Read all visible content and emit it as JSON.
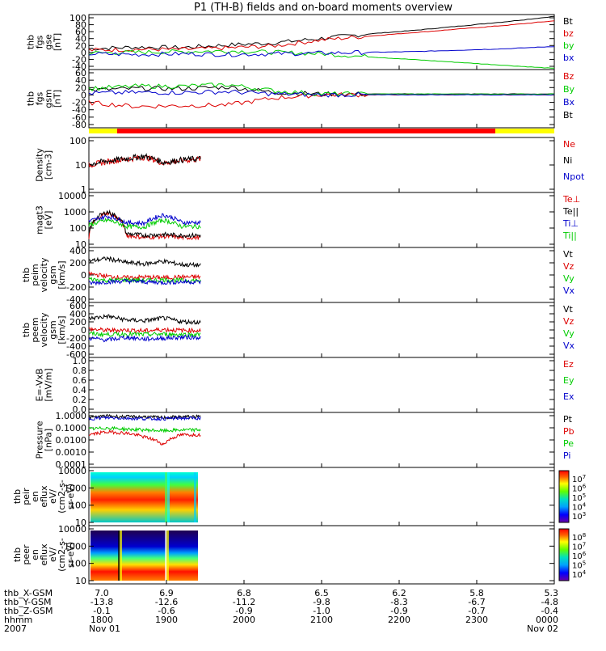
{
  "title": "P1 (TH-B) fields and on-board moments overview",
  "colors": {
    "black": "#000000",
    "red": "#dd0000",
    "green": "#00cc00",
    "blue": "#0000cc",
    "yellow": "#ffff00",
    "bar_red": "#ff0000"
  },
  "chart_data": [
    {
      "type": "line",
      "panel": "fgs_gse",
      "ylabel": [
        "thb",
        "fgs",
        "gse",
        "[nT]"
      ],
      "yticks": [
        "100",
        "80",
        "60",
        "40",
        "20",
        "0",
        "-20",
        "-40"
      ],
      "ylim": [
        -45,
        105
      ],
      "legend": [
        {
          "label": "Bt",
          "color": "#000000"
        },
        {
          "label": "bz",
          "color": "#dd0000"
        },
        {
          "label": "by",
          "color": "#00cc00"
        },
        {
          "label": "bx",
          "color": "#0000cc"
        }
      ],
      "series": [
        {
          "name": "Bt",
          "x": [
            0,
            0.1,
            0.2,
            0.3,
            0.4,
            0.5,
            0.6,
            0.7,
            0.8,
            0.9,
            1.0
          ],
          "y": [
            12,
            16,
            15,
            22,
            28,
            40,
            52,
            62,
            74,
            86,
            100
          ]
        },
        {
          "name": "bz",
          "x": [
            0,
            0.1,
            0.2,
            0.3,
            0.4,
            0.5,
            0.6,
            0.7,
            0.8,
            0.9,
            1.0
          ],
          "y": [
            8,
            10,
            10,
            14,
            20,
            36,
            46,
            56,
            66,
            76,
            88
          ]
        },
        {
          "name": "by",
          "x": [
            0,
            0.1,
            0.2,
            0.3,
            0.4,
            0.5,
            0.6,
            0.7,
            0.8,
            0.9,
            1.0
          ],
          "y": [
            0,
            2,
            4,
            6,
            2,
            -2,
            -10,
            -18,
            -26,
            -34,
            -42
          ]
        },
        {
          "name": "bx",
          "x": [
            0,
            0.1,
            0.2,
            0.3,
            0.4,
            0.5,
            0.6,
            0.7,
            0.8,
            0.9,
            1.0
          ],
          "y": [
            -2,
            -4,
            -2,
            -4,
            -2,
            0,
            2,
            4,
            8,
            12,
            18
          ]
        }
      ]
    },
    {
      "type": "line",
      "panel": "fgs_gsm",
      "ylabel": [
        "thb",
        "fgs",
        "gsm",
        "[nT]"
      ],
      "yticks": [
        "60",
        "40",
        "20",
        "0",
        "-20",
        "-40",
        "-60",
        "-80"
      ],
      "ylim": [
        -85,
        65
      ],
      "legend": [
        {
          "label": "Bz",
          "color": "#dd0000"
        },
        {
          "label": "By",
          "color": "#00cc00"
        },
        {
          "label": "Bx",
          "color": "#0000cc"
        },
        {
          "label": "Bt",
          "color": "#000000"
        }
      ],
      "series": [
        {
          "name": "Bt",
          "x": [
            0,
            0.1,
            0.2,
            0.3,
            0.4,
            0.5,
            0.6,
            0.7,
            0.8,
            0.9,
            1.0
          ],
          "y": [
            12,
            16,
            16,
            20,
            6,
            2,
            2,
            2,
            2,
            2,
            2
          ]
        },
        {
          "name": "Bz",
          "x": [
            0,
            0.1,
            0.2,
            0.3,
            0.4,
            0.5,
            0.6,
            0.7,
            0.8,
            0.9,
            1.0
          ],
          "y": [
            -20,
            -30,
            -28,
            -26,
            -8,
            0,
            0,
            0,
            0,
            0,
            0
          ]
        },
        {
          "name": "By",
          "x": [
            0,
            0.1,
            0.2,
            0.3,
            0.4,
            0.5,
            0.6,
            0.7,
            0.8,
            0.9,
            1.0
          ],
          "y": [
            16,
            22,
            22,
            26,
            10,
            2,
            2,
            2,
            2,
            2,
            2
          ]
        },
        {
          "name": "Bx",
          "x": [
            0,
            0.1,
            0.2,
            0.3,
            0.4,
            0.5,
            0.6,
            0.7,
            0.8,
            0.9,
            1.0
          ],
          "y": [
            4,
            6,
            6,
            8,
            2,
            0,
            0,
            0,
            0,
            0,
            0
          ]
        }
      ]
    },
    {
      "type": "line",
      "panel": "density",
      "ylabel": [
        "Density",
        "[cm-3]"
      ],
      "yticks": [
        "100",
        "10",
        "1"
      ],
      "ylim": [
        0.7,
        150
      ],
      "yscale": "log",
      "legend": [
        {
          "label": "Ne",
          "color": "#dd0000"
        },
        {
          "label": "Ni",
          "color": "#000000"
        },
        {
          "label": "Npot",
          "color": "#0000cc"
        }
      ],
      "series": [
        {
          "name": "Ne",
          "x": [
            0,
            0.04,
            0.08,
            0.12,
            0.16,
            0.2,
            0.24
          ],
          "y": [
            10,
            14,
            18,
            22,
            12,
            16,
            18
          ]
        },
        {
          "name": "Ni",
          "x": [
            0,
            0.04,
            0.08,
            0.12,
            0.16,
            0.2,
            0.24
          ],
          "y": [
            11,
            15,
            19,
            24,
            13,
            17,
            19
          ]
        }
      ]
    },
    {
      "type": "line",
      "panel": "magt3",
      "ylabel": [
        "magt3",
        "[eV]"
      ],
      "yticks": [
        "10000",
        "1000",
        "100",
        "10"
      ],
      "ylim": [
        8,
        12000
      ],
      "yscale": "log",
      "legend": [
        {
          "label": "Te⊥",
          "color": "#dd0000"
        },
        {
          "label": "Te||",
          "color": "#000000"
        },
        {
          "label": "Ti⊥",
          "color": "#0000cc"
        },
        {
          "label": "Ti||",
          "color": "#00cc00"
        }
      ],
      "series": [
        {
          "name": "Te⊥",
          "x": [
            0,
            0.04,
            0.08,
            0.12,
            0.16,
            0.2,
            0.24
          ],
          "y": [
            30,
            800,
            40,
            30,
            35,
            30,
            30
          ]
        },
        {
          "name": "Te||",
          "x": [
            0,
            0.04,
            0.08,
            0.12,
            0.16,
            0.2,
            0.24
          ],
          "y": [
            40,
            900,
            50,
            40,
            45,
            40,
            40
          ]
        },
        {
          "name": "Ti⊥",
          "x": [
            0,
            0.04,
            0.08,
            0.12,
            0.16,
            0.2,
            0.24
          ],
          "y": [
            250,
            500,
            220,
            200,
            600,
            220,
            220
          ]
        },
        {
          "name": "Ti||",
          "x": [
            0,
            0.04,
            0.08,
            0.12,
            0.16,
            0.2,
            0.24
          ],
          "y": [
            150,
            300,
            130,
            120,
            300,
            130,
            130
          ]
        }
      ]
    },
    {
      "type": "line",
      "panel": "velocity_peim",
      "ylabel": [
        "thb",
        "peim",
        "velocity",
        "gsm",
        "[km/s]"
      ],
      "yticks": [
        "400",
        "200",
        "0",
        "-200",
        "-400"
      ],
      "ylim": [
        -400,
        400
      ],
      "legend": [
        {
          "label": "Vt",
          "color": "#000000"
        },
        {
          "label": "Vz",
          "color": "#dd0000"
        },
        {
          "label": "Vy",
          "color": "#00cc00"
        },
        {
          "label": "Vx",
          "color": "#0000cc"
        }
      ],
      "series": [
        {
          "name": "Vt",
          "x": [
            0,
            0.04,
            0.08,
            0.12,
            0.16,
            0.2,
            0.24
          ],
          "y": [
            200,
            240,
            180,
            160,
            200,
            150,
            140
          ]
        },
        {
          "name": "Vz",
          "x": [
            0,
            0.04,
            0.08,
            0.12,
            0.16,
            0.2,
            0.24
          ],
          "y": [
            20,
            -20,
            -40,
            -30,
            -40,
            -30,
            -30
          ]
        },
        {
          "name": "Vy",
          "x": [
            0,
            0.04,
            0.08,
            0.12,
            0.16,
            0.2,
            0.24
          ],
          "y": [
            -60,
            -80,
            -70,
            -80,
            -70,
            -80,
            -80
          ]
        },
        {
          "name": "Vx",
          "x": [
            0,
            0.04,
            0.08,
            0.12,
            0.16,
            0.2,
            0.24
          ],
          "y": [
            -120,
            -100,
            -90,
            -100,
            -110,
            -100,
            -100
          ]
        }
      ]
    },
    {
      "type": "line",
      "panel": "velocity_peem",
      "ylabel": [
        "thb",
        "peem",
        "velocity",
        "gsm",
        "[km/s]"
      ],
      "yticks": [
        "600",
        "400",
        "200",
        "0",
        "-200",
        "-400",
        "-600"
      ],
      "ylim": [
        -600,
        600
      ],
      "legend": [
        {
          "label": "Vt",
          "color": "#000000"
        },
        {
          "label": "Vz",
          "color": "#dd0000"
        },
        {
          "label": "Vy",
          "color": "#00cc00"
        },
        {
          "label": "Vx",
          "color": "#0000cc"
        }
      ],
      "series": [
        {
          "name": "Vt",
          "x": [
            0,
            0.04,
            0.08,
            0.12,
            0.16,
            0.2,
            0.24
          ],
          "y": [
            250,
            300,
            220,
            200,
            260,
            180,
            170
          ]
        },
        {
          "name": "Vz",
          "x": [
            0,
            0.04,
            0.08,
            0.12,
            0.16,
            0.2,
            0.24
          ],
          "y": [
            20,
            -10,
            0,
            -20,
            10,
            -10,
            -10
          ]
        },
        {
          "name": "Vy",
          "x": [
            0,
            0.04,
            0.08,
            0.12,
            0.16,
            0.2,
            0.24
          ],
          "y": [
            -80,
            -100,
            -90,
            -100,
            -90,
            -100,
            -100
          ]
        },
        {
          "name": "Vx",
          "x": [
            0,
            0.04,
            0.08,
            0.12,
            0.16,
            0.2,
            0.24
          ],
          "y": [
            -180,
            -220,
            -160,
            -200,
            -180,
            -160,
            -160
          ]
        }
      ]
    },
    {
      "type": "line",
      "panel": "efield",
      "ylabel": [
        "E=-VxB",
        "[mV/m]"
      ],
      "yticks": [
        "1.0",
        "0.8",
        "0.6",
        "0.4",
        "0.2",
        "0.0"
      ],
      "ylim": [
        0,
        1
      ],
      "legend": [
        {
          "label": "Ez",
          "color": "#dd0000"
        },
        {
          "label": "Ey",
          "color": "#00cc00"
        },
        {
          "label": "Ex",
          "color": "#0000cc"
        }
      ],
      "series": []
    },
    {
      "type": "line",
      "panel": "pressure",
      "ylabel": [
        "Pressure",
        "[nPa]"
      ],
      "yticks": [
        "1.0000",
        "0.1000",
        "0.0100",
        "0.0010",
        "0.0001"
      ],
      "ylim": [
        0.0001,
        1.5
      ],
      "yscale": "log",
      "legend": [
        {
          "label": "Pt",
          "color": "#000000"
        },
        {
          "label": "Pb",
          "color": "#dd0000"
        },
        {
          "label": "Pe",
          "color": "#00cc00"
        },
        {
          "label": "Pi",
          "color": "#0000cc"
        }
      ],
      "series": [
        {
          "name": "Pt",
          "x": [
            0,
            0.04,
            0.08,
            0.12,
            0.16,
            0.2,
            0.24
          ],
          "y": [
            0.6,
            0.8,
            0.7,
            0.7,
            0.6,
            0.7,
            0.7
          ]
        },
        {
          "name": "Pi",
          "x": [
            0,
            0.04,
            0.08,
            0.12,
            0.16,
            0.2,
            0.24
          ],
          "y": [
            0.5,
            0.6,
            0.55,
            0.5,
            0.5,
            0.55,
            0.55
          ]
        },
        {
          "name": "Pe",
          "x": [
            0,
            0.04,
            0.08,
            0.12,
            0.16,
            0.2,
            0.24
          ],
          "y": [
            0.08,
            0.1,
            0.08,
            0.07,
            0.06,
            0.07,
            0.07
          ]
        },
        {
          "name": "Pb",
          "x": [
            0,
            0.04,
            0.08,
            0.12,
            0.16,
            0.2,
            0.24
          ],
          "y": [
            0.03,
            0.05,
            0.04,
            0.02,
            0.005,
            0.03,
            0.03
          ]
        }
      ]
    },
    {
      "type": "heatmap",
      "panel": "peir_spectrogram",
      "ylabel": [
        "thb",
        "peir",
        "en",
        "eflux",
        "eV/",
        "(cm2-s-",
        "sr-eV)"
      ],
      "yticks": [
        "10000",
        "1000",
        "100",
        "10"
      ],
      "colorbar_ticks": [
        "10^7",
        "10^6",
        "10^5",
        "10^4",
        "10^3"
      ]
    },
    {
      "type": "heatmap",
      "panel": "peer_spectrogram",
      "ylabel": [
        "thb",
        "peer",
        "en",
        "eflux",
        "eV/",
        "(cm2-s-",
        "sr-eV)"
      ],
      "yticks": [
        "10000",
        "1000",
        "100",
        "10"
      ],
      "colorbar_ticks": [
        "10^8",
        "10^7",
        "10^6",
        "10^5",
        "10^4"
      ]
    }
  ],
  "xaxis": {
    "row_labels": [
      "thb_X-GSM",
      "thb_Y-GSM",
      "thb_Z-GSM",
      "hhmm",
      "2007"
    ],
    "columns": [
      {
        "values": [
          "7.0",
          "-13.8",
          "-0.1",
          "1800",
          "Nov 01"
        ]
      },
      {
        "values": [
          "6.9",
          "-12.6",
          "-0.6",
          "1900",
          ""
        ]
      },
      {
        "values": [
          "6.8",
          "-11.2",
          "-0.9",
          "2000",
          ""
        ]
      },
      {
        "values": [
          "6.5",
          "-9.8",
          "-1.0",
          "2100",
          ""
        ]
      },
      {
        "values": [
          "6.2",
          "-8.3",
          "-0.9",
          "2200",
          ""
        ]
      },
      {
        "values": [
          "5.8",
          "-6.7",
          "-0.7",
          "2300",
          ""
        ]
      },
      {
        "values": [
          "5.3",
          "-4.8",
          "-0.4",
          "0000",
          "Nov 02"
        ]
      }
    ]
  }
}
